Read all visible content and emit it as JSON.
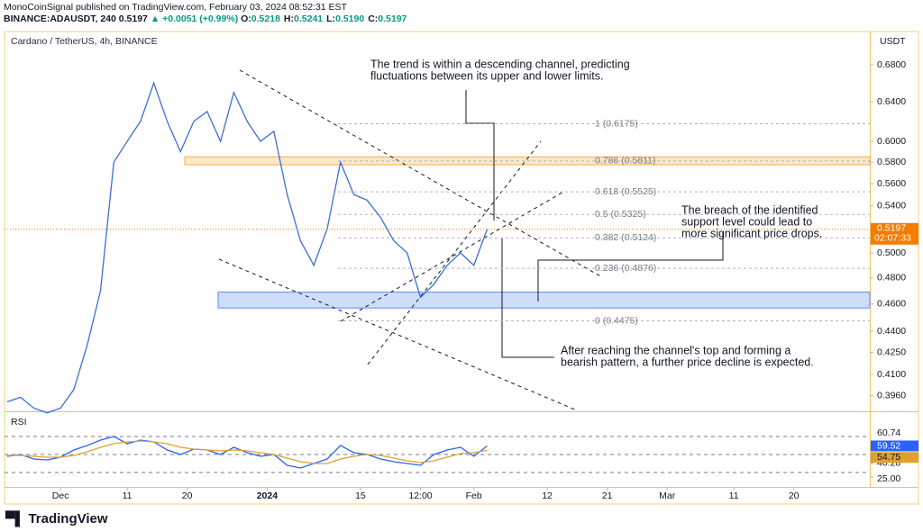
{
  "header": {
    "publisher": "MonoCoinSignal published on TradingView.com, February 03, 2024 08:52:31 EST",
    "symbol": "BINANCE:ADAUSDT, 240",
    "last": "0.5197",
    "change": "▲ +0.0051 (+0.99%)",
    "ohlc": [
      {
        "label": "O:",
        "value": "0.5218"
      },
      {
        "label": "H:",
        "value": "0.5241"
      },
      {
        "label": "L:",
        "value": "0.5190"
      },
      {
        "label": "C:",
        "value": "0.5197"
      }
    ],
    "logo": "TradingView"
  },
  "chart_data": [
    {
      "type": "line",
      "title": "Cardano / TetherUS, 4h, BINANCE",
      "y_axis_label": "USDT",
      "log_scale": true,
      "color": "#3a6fd8",
      "values": [
        0.392,
        0.395,
        0.388,
        0.385,
        0.388,
        0.4,
        0.43,
        0.47,
        0.58,
        0.6,
        0.62,
        0.66,
        0.62,
        0.59,
        0.62,
        0.63,
        0.6,
        0.65,
        0.62,
        0.6,
        0.61,
        0.55,
        0.51,
        0.49,
        0.52,
        0.58,
        0.55,
        0.545,
        0.53,
        0.51,
        0.5,
        0.465,
        0.475,
        0.49,
        0.5,
        0.49,
        0.5197
      ],
      "xlim": [
        -0.2,
        64.7
      ],
      "ylim": [
        0.386,
        0.718
      ],
      "xticks": [
        {
          "value": 4,
          "label": "Dec"
        },
        {
          "value": 9,
          "label": "11"
        },
        {
          "value": 13.5,
          "label": "20"
        },
        {
          "value": 19.5,
          "label": "2024"
        },
        {
          "value": 26.5,
          "label": "15"
        },
        {
          "value": 31,
          "label": "12:00"
        },
        {
          "value": 35,
          "label": "Feb"
        },
        {
          "value": 40.5,
          "label": "12"
        },
        {
          "value": 45,
          "label": "21"
        },
        {
          "value": 49.5,
          "label": "Mar"
        },
        {
          "value": 54.5,
          "label": "11"
        },
        {
          "value": 59,
          "label": "20"
        }
      ],
      "yticks": [
        {
          "value": 0.68,
          "label": "0.6800"
        },
        {
          "value": 0.64,
          "label": "0.6400"
        },
        {
          "value": 0.6,
          "label": "0.6000"
        },
        {
          "value": 0.58,
          "label": "0.5800"
        },
        {
          "value": 0.56,
          "label": "0.5600"
        },
        {
          "value": 0.54,
          "label": "0.5400"
        },
        {
          "value": 0.5,
          "label": "0.5000"
        },
        {
          "value": 0.48,
          "label": "0.4800"
        },
        {
          "value": 0.46,
          "label": "0.4600"
        },
        {
          "value": 0.44,
          "label": "0.4400"
        },
        {
          "value": 0.425,
          "label": "0.4250"
        },
        {
          "value": 0.41,
          "label": "0.4100"
        },
        {
          "value": 0.396,
          "label": "0.3960"
        }
      ],
      "last_price": {
        "value": 0.5197,
        "label": "0.5197"
      },
      "countdown": "02:07:33",
      "fib_levels": [
        {
          "value": 0.6175,
          "label": "1 (0.6175)"
        },
        {
          "value": 0.5811,
          "label": "0.786 (0.5811)"
        },
        {
          "value": 0.5525,
          "label": "0.618 (0.5525)"
        },
        {
          "value": 0.5325,
          "label": "0.5 (0.5325)"
        },
        {
          "value": 0.5124,
          "label": "0.382 (0.5124)"
        },
        {
          "value": 0.4876,
          "label": "0.236 (0.4876)"
        },
        {
          "value": 0.4475,
          "label": "0 (0.4475)"
        }
      ],
      "zones": [
        {
          "from": 0.5775,
          "to": 0.585,
          "color": "#f5b041"
        },
        {
          "from": 0.457,
          "to": 0.469,
          "color": "#5b8def"
        }
      ],
      "annotations": [
        {
          "lines": [
            "The trend is within a descending channel, predicting",
            "fluctuations between its upper and lower limits."
          ]
        },
        {
          "lines": [
            "The breach of the identified",
            "support level could lead to",
            "more significant price drops."
          ]
        },
        {
          "lines": [
            "After reaching the channel's top and forming a",
            "bearish pattern, a further price decline is expected."
          ]
        }
      ]
    },
    {
      "type": "line",
      "title": "RSI",
      "xlim": [
        -0.2,
        64.7
      ],
      "ylim": [
        15,
        95
      ],
      "yticks": [
        60.74,
        40.28,
        {
          "value": 25,
          "label": "25.00"
        }
      ],
      "levels": [
        70,
        50,
        30
      ],
      "series": [
        {
          "color": "#2962ff",
          "values": [
            48,
            50,
            45,
            44,
            47,
            55,
            60,
            66,
            70,
            62,
            66,
            64,
            55,
            50,
            56,
            55,
            50,
            58,
            52,
            48,
            50,
            38,
            35,
            40,
            45,
            60,
            52,
            50,
            45,
            42,
            40,
            38,
            50,
            55,
            58,
            48,
            59.52
          ]
        },
        {
          "color": "#e0a030",
          "values": [
            49,
            49,
            48,
            47,
            47,
            49,
            53,
            58,
            62,
            64,
            65,
            64,
            62,
            58,
            56,
            55,
            54,
            55,
            54,
            52,
            50,
            46,
            42,
            40,
            40,
            45,
            48,
            50,
            49,
            46,
            43,
            41,
            43,
            47,
            51,
            52,
            54.75
          ]
        }
      ]
    }
  ]
}
